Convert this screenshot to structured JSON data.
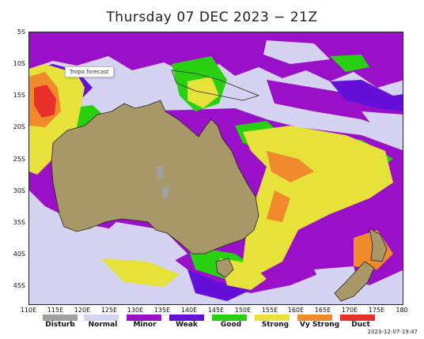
{
  "title": "Thursday 07 DEC 2023 − 21Z",
  "tooltip": "Tropo forecast",
  "timestamp": "2023-12-07-19:47",
  "lat_labels": [
    "5S",
    "10S",
    "15S",
    "20S",
    "25S",
    "30S",
    "35S",
    "40S",
    "45S"
  ],
  "lon_labels": [
    "110E",
    "115E",
    "120E",
    "125E",
    "130E",
    "135E",
    "140E",
    "145E",
    "150E",
    "155E",
    "160E",
    "165E",
    "170E",
    "175E",
    "180"
  ],
  "legend": [
    {
      "label": "Disturb",
      "color": "#a0a0a0"
    },
    {
      "label": "Normal",
      "color": "#d4d4f2"
    },
    {
      "label": "Minor",
      "color": "#9a10c8"
    },
    {
      "label": "Weak",
      "color": "#6410d8"
    },
    {
      "label": "Good",
      "color": "#28d010"
    },
    {
      "label": "Strong",
      "color": "#e6e23a"
    },
    {
      "label": "Vy Strong",
      "color": "#f08a2a"
    },
    {
      "label": "Duct",
      "color": "#e8302a"
    }
  ],
  "colors": {
    "normal": "#d4d4f2",
    "minor": "#9a10c8",
    "weak": "#6410d8",
    "good": "#28d010",
    "strong": "#e6e23a",
    "vystrong": "#f08a2a",
    "duct": "#e8302a",
    "land": "#a89868",
    "disturb": "#a0a0a0"
  }
}
